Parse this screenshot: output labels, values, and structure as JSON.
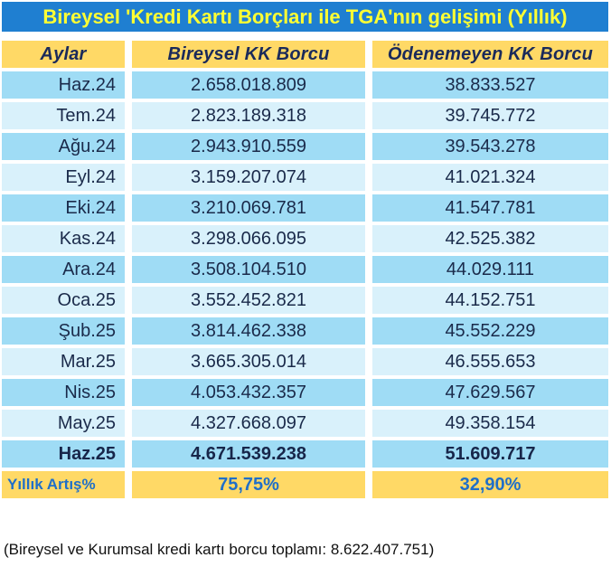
{
  "title": "Bireysel 'Kredi Kartı Borçları ile TGA'nın gelişimi (Yıllık)",
  "headers": [
    "Aylar",
    "Bireysel KK Borcu",
    "Ödenemeyen KK Borcu"
  ],
  "rows": [
    {
      "month": "Haz.24",
      "debt": "2.658.018.809",
      "unpaid": "38.833.527"
    },
    {
      "month": "Tem.24",
      "debt": "2.823.189.318",
      "unpaid": "39.745.772"
    },
    {
      "month": "Ağu.24",
      "debt": "2.943.910.559",
      "unpaid": "39.543.278"
    },
    {
      "month": "Eyl.24",
      "debt": "3.159.207.074",
      "unpaid": "41.021.324"
    },
    {
      "month": "Eki.24",
      "debt": "3.210.069.781",
      "unpaid": "41.547.781"
    },
    {
      "month": "Kas.24",
      "debt": "3.298.066.095",
      "unpaid": "42.525.382"
    },
    {
      "month": "Ara.24",
      "debt": "3.508.104.510",
      "unpaid": "44.029.111"
    },
    {
      "month": "Oca.25",
      "debt": "3.552.452.821",
      "unpaid": "44.152.751"
    },
    {
      "month": "Şub.25",
      "debt": "3.814.462.338",
      "unpaid": "45.552.229"
    },
    {
      "month": "Mar.25",
      "debt": "3.665.305.014",
      "unpaid": "46.555.653"
    },
    {
      "month": "Nis.25",
      "debt": "4.053.432.357",
      "unpaid": "47.629.567"
    },
    {
      "month": "May.25",
      "debt": "4.327.668.097",
      "unpaid": "49.358.154"
    },
    {
      "month": "Haz.25",
      "debt": "4.671.539.238",
      "unpaid": "51.609.717"
    }
  ],
  "footer": {
    "label": "Yıllık Artış%",
    "debt": "75,75%",
    "unpaid": "32,90%"
  },
  "note": "(Bireysel ve Kurumsal kredi kartı borcu toplamı:  8.622.407.751)",
  "colors": {
    "title_bg": "#1f7fd1",
    "title_text": "#ffff33",
    "header_bg": "#ffd966",
    "row_dark": "#9fdcf5",
    "row_light": "#d9f1fb",
    "footer_text": "#1f6fc9"
  }
}
